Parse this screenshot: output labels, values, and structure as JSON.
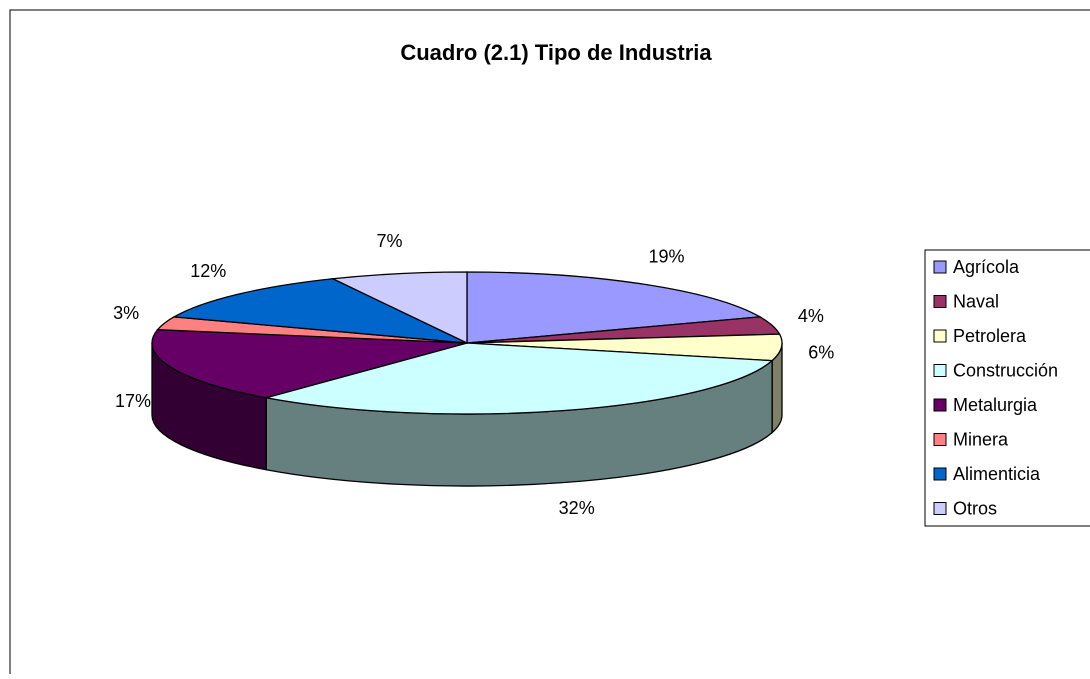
{
  "chart_data": {
    "type": "pie",
    "title": "Cuadro (2.1) Tipo de Industria",
    "categories": [
      "Agrícola",
      "Naval",
      "Petrolera",
      "Construcción",
      "Metalurgia",
      "Minera",
      "Alimenticia",
      "Otros"
    ],
    "values": [
      19,
      4,
      6,
      32,
      17,
      3,
      12,
      7
    ],
    "value_labels": [
      "19%",
      "4%",
      "6%",
      "32%",
      "17%",
      "3%",
      "12%",
      "7%"
    ],
    "colors": [
      "#9999ff",
      "#993366",
      "#ffffcc",
      "#ccffff",
      "#660066",
      "#ff8080",
      "#0066cc",
      "#ccccff"
    ],
    "legend": "right"
  }
}
